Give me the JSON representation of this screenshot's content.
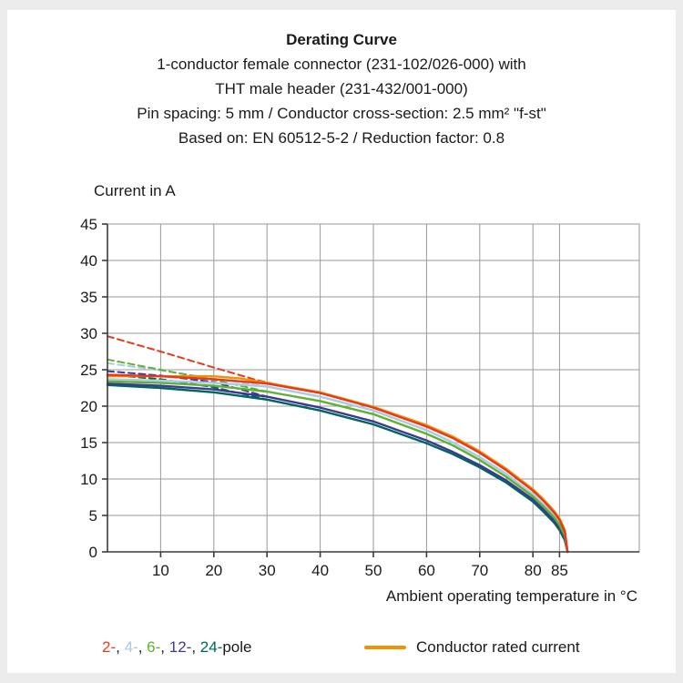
{
  "header": {
    "title": "Derating Curve",
    "lines": [
      "1-conductor female connector (231-102/026-000) with",
      "THT male header (231-432/001-000)",
      "Pin spacing: 5 mm / Conductor cross-section: 2.5 mm² \"f-st\"",
      "Based on: EN 60512-5-2 / Reduction factor: 0.8"
    ]
  },
  "chart_data": {
    "type": "line",
    "title": "Derating Curve",
    "ylabel": "Current in A",
    "xlabel": "Ambient operating temperature in °C",
    "xlim": [
      0,
      100
    ],
    "ylim": [
      0,
      45
    ],
    "x_ticks": [
      10,
      20,
      30,
      40,
      50,
      60,
      70,
      80,
      85
    ],
    "y_ticks": [
      0,
      5,
      10,
      15,
      20,
      25,
      30,
      35,
      40,
      45
    ],
    "grid": true,
    "grid_color": "#9a9a9a",
    "axis_color": "#3c3c3c",
    "series": [
      {
        "name": "2-pole dashed",
        "color": "#e8391d",
        "style": "dashed",
        "points": [
          [
            0,
            29.6
          ],
          [
            10,
            27.5
          ],
          [
            20,
            25.3
          ],
          [
            28,
            23.6
          ],
          [
            31,
            23.1
          ]
        ]
      },
      {
        "name": "4-pole dashed",
        "color": "#a9cbe4",
        "style": "dashed",
        "points": [
          [
            0,
            25.9
          ],
          [
            10,
            24.9
          ],
          [
            20,
            23.8
          ],
          [
            30,
            22.7
          ]
        ]
      },
      {
        "name": "6-pole dashed",
        "color": "#5fb130",
        "style": "dashed",
        "points": [
          [
            0,
            26.4
          ],
          [
            10,
            25.0
          ],
          [
            20,
            23.6
          ],
          [
            30,
            22.0
          ]
        ]
      },
      {
        "name": "12-pole dashed",
        "color": "#3d3a94",
        "style": "dashed",
        "points": [
          [
            0,
            24.8
          ],
          [
            10,
            24.2
          ],
          [
            20,
            23.3
          ],
          [
            30,
            21.3
          ]
        ]
      },
      {
        "name": "24-pole dashed",
        "color": "#00665c",
        "style": "dashed",
        "points": [
          [
            0,
            24.3
          ],
          [
            10,
            23.7
          ],
          [
            20,
            22.6
          ],
          [
            30,
            20.9
          ]
        ]
      },
      {
        "name": "24-pole",
        "color": "#00665c",
        "style": "solid",
        "points": [
          [
            0,
            22.9
          ],
          [
            10,
            22.5
          ],
          [
            20,
            21.9
          ],
          [
            30,
            20.9
          ],
          [
            40,
            19.4
          ],
          [
            50,
            17.5
          ],
          [
            60,
            14.9
          ],
          [
            65,
            13.4
          ],
          [
            70,
            11.6
          ],
          [
            75,
            9.5
          ],
          [
            80,
            6.9
          ],
          [
            82,
            5.5
          ],
          [
            84,
            4.0
          ],
          [
            85,
            3.0
          ],
          [
            86,
            1.6
          ],
          [
            86.5,
            0
          ]
        ]
      },
      {
        "name": "12-pole",
        "color": "#3d3a94",
        "style": "solid",
        "points": [
          [
            0,
            23.1
          ],
          [
            10,
            22.8
          ],
          [
            20,
            22.3
          ],
          [
            30,
            21.3
          ],
          [
            40,
            19.8
          ],
          [
            50,
            17.9
          ],
          [
            60,
            15.3
          ],
          [
            65,
            13.7
          ],
          [
            70,
            11.9
          ],
          [
            75,
            9.8
          ],
          [
            80,
            7.2
          ],
          [
            82,
            5.8
          ],
          [
            84,
            4.3
          ],
          [
            85,
            3.3
          ],
          [
            86,
            1.9
          ],
          [
            86.5,
            0
          ]
        ]
      },
      {
        "name": "4-pole",
        "color": "#a9cbe4",
        "style": "solid",
        "points": [
          [
            0,
            23.7
          ],
          [
            10,
            23.5
          ],
          [
            20,
            23.2
          ],
          [
            30,
            22.7
          ],
          [
            40,
            21.3
          ],
          [
            50,
            19.4
          ],
          [
            60,
            16.7
          ],
          [
            65,
            15.0
          ],
          [
            70,
            13.0
          ],
          [
            75,
            10.7
          ],
          [
            80,
            7.9
          ],
          [
            82,
            6.5
          ],
          [
            84,
            5.0
          ],
          [
            85,
            4.0
          ],
          [
            86,
            2.5
          ],
          [
            86.5,
            0
          ]
        ]
      },
      {
        "name": "6-pole",
        "color": "#5fb130",
        "style": "solid",
        "points": [
          [
            0,
            23.4
          ],
          [
            10,
            23.2
          ],
          [
            20,
            22.8
          ],
          [
            30,
            22.0
          ],
          [
            40,
            20.7
          ],
          [
            50,
            18.9
          ],
          [
            60,
            16.2
          ],
          [
            65,
            14.6
          ],
          [
            70,
            12.6
          ],
          [
            75,
            10.3
          ],
          [
            80,
            7.6
          ],
          [
            82,
            6.2
          ],
          [
            84,
            4.7
          ],
          [
            85,
            3.7
          ],
          [
            86,
            2.2
          ],
          [
            86.5,
            0
          ]
        ]
      },
      {
        "name": "conductor-rated-current",
        "color": "#f39200",
        "style": "solid",
        "points": [
          [
            0,
            24.1
          ],
          [
            10,
            24.1
          ],
          [
            20,
            24.1
          ],
          [
            25,
            23.8
          ],
          [
            30,
            23.2
          ],
          [
            40,
            21.9
          ],
          [
            50,
            19.9
          ],
          [
            60,
            17.4
          ],
          [
            65,
            15.8
          ],
          [
            70,
            13.8
          ],
          [
            75,
            11.4
          ],
          [
            80,
            8.6
          ],
          [
            82,
            7.2
          ],
          [
            84,
            5.6
          ],
          [
            85,
            4.6
          ],
          [
            86,
            3.0
          ],
          [
            86.5,
            0
          ]
        ]
      },
      {
        "name": "2-pole",
        "color": "#e8391d",
        "style": "solid",
        "points": [
          [
            0,
            24.3
          ],
          [
            10,
            24.1
          ],
          [
            20,
            23.7
          ],
          [
            30,
            23.1
          ],
          [
            40,
            21.8
          ],
          [
            50,
            19.8
          ],
          [
            60,
            17.2
          ],
          [
            65,
            15.6
          ],
          [
            70,
            13.6
          ],
          [
            75,
            11.2
          ],
          [
            80,
            8.4
          ],
          [
            82,
            7.0
          ],
          [
            84,
            5.4
          ],
          [
            85,
            4.4
          ],
          [
            86,
            2.8
          ],
          [
            86.5,
            0
          ]
        ]
      }
    ]
  },
  "legend": {
    "poles": [
      {
        "label": "2-",
        "color": "#e8391d"
      },
      {
        "label": "4-",
        "color": "#a9cbe4"
      },
      {
        "label": "6-",
        "color": "#5fb130"
      },
      {
        "label": "12-",
        "color": "#3d3a94"
      },
      {
        "label": "24-",
        "color": "#00665c"
      }
    ],
    "separator": ", ",
    "poles_suffix": "pole",
    "rated": {
      "label": "Conductor rated current",
      "color": "#f39200"
    }
  }
}
